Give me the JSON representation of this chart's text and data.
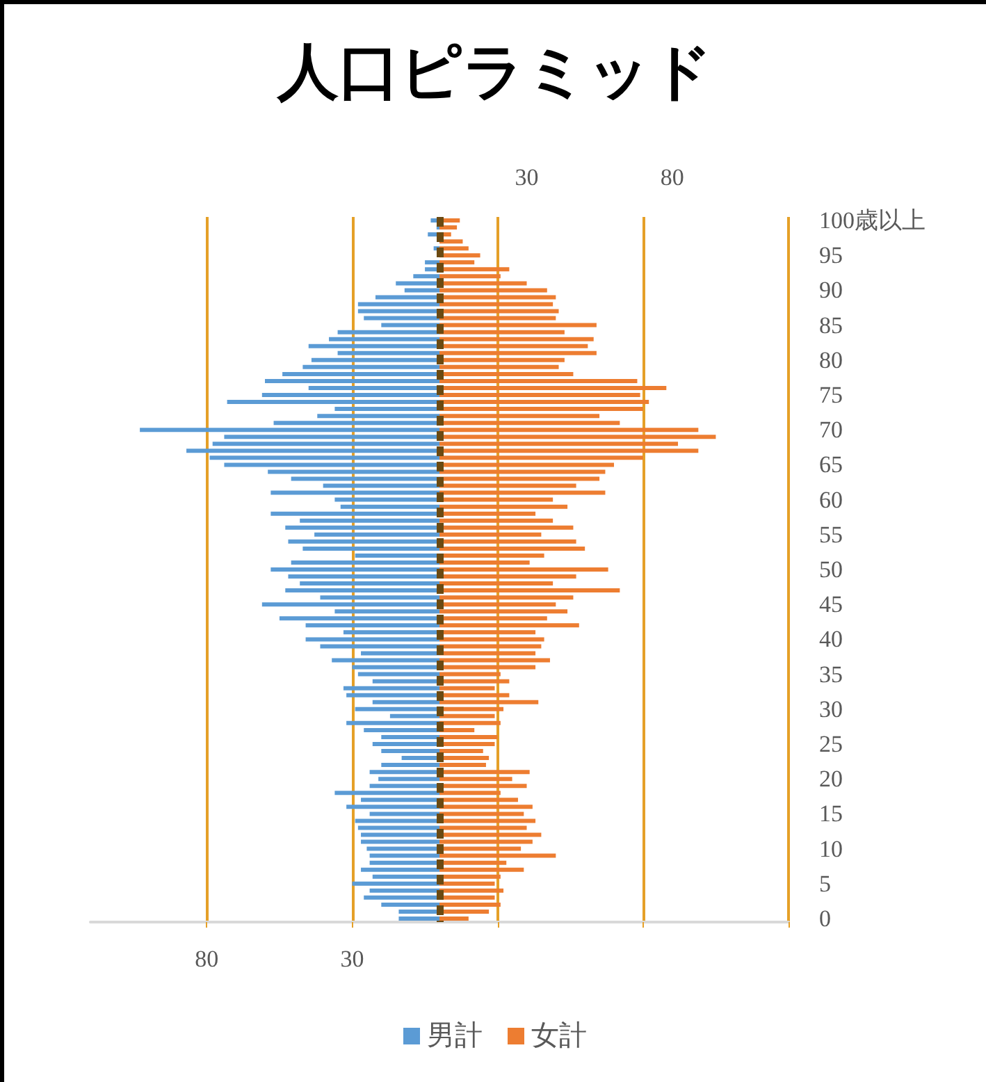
{
  "chart_data": {
    "type": "bar",
    "title": "人口ピラミッド",
    "orientation": "horizontal",
    "categories": [
      "100歳以上",
      null,
      null,
      null,
      null,
      "95",
      null,
      null,
      null,
      null,
      "90",
      null,
      null,
      null,
      null,
      "85",
      null,
      null,
      null,
      null,
      "80",
      null,
      null,
      null,
      null,
      "75",
      null,
      null,
      null,
      null,
      "70",
      null,
      null,
      null,
      null,
      "65",
      null,
      null,
      null,
      null,
      "60",
      null,
      null,
      null,
      null,
      "55",
      null,
      null,
      null,
      null,
      "50",
      null,
      null,
      null,
      null,
      "45",
      null,
      null,
      null,
      null,
      "40",
      null,
      null,
      null,
      null,
      "35",
      null,
      null,
      null,
      null,
      "30",
      null,
      null,
      null,
      null,
      "25",
      null,
      null,
      null,
      null,
      "20",
      null,
      null,
      null,
      null,
      "15",
      null,
      null,
      null,
      null,
      "10",
      null,
      null,
      null,
      null,
      "5",
      null,
      null,
      null,
      null,
      "0"
    ],
    "series": [
      {
        "name": "男計",
        "color": "#5b9bd5",
        "values": [
          -3,
          -1,
          -4,
          null,
          -2,
          null,
          -5,
          -5,
          -9,
          -15,
          -12,
          -22,
          -28,
          -28,
          -26,
          -20,
          -35,
          -38,
          -45,
          -35,
          -44,
          -47,
          -54,
          -60,
          -45,
          -61,
          -73,
          -36,
          -42,
          -57,
          -103,
          -74,
          -78,
          -87,
          -79,
          -74,
          -59,
          -51,
          -40,
          -58,
          -36,
          -34,
          -58,
          -48,
          -53,
          -43,
          -52,
          -47,
          -29,
          -51,
          -58,
          -52,
          -48,
          -53,
          -41,
          -61,
          -36,
          -55,
          -46,
          -33,
          -46,
          -41,
          -27,
          -37,
          -30,
          -28,
          -23,
          -33,
          -32,
          -23,
          -29,
          -17,
          -32,
          -26,
          -20,
          -23,
          -20,
          -13,
          -20,
          -24,
          -21,
          -24,
          -36,
          -27,
          -32,
          -24,
          -29,
          -28,
          -27,
          -27,
          -25,
          -24,
          -24,
          -27,
          -23,
          -30,
          -24,
          -26,
          -20,
          -14,
          -14
        ]
      },
      {
        "name": "女計",
        "color": "#ed7d31",
        "values": [
          7,
          6,
          4,
          8,
          10,
          14,
          12,
          24,
          21,
          30,
          37,
          40,
          39,
          41,
          40,
          54,
          43,
          53,
          51,
          54,
          43,
          41,
          46,
          68,
          78,
          69,
          72,
          70,
          55,
          62,
          89,
          95,
          82,
          89,
          70,
          60,
          57,
          55,
          47,
          57,
          39,
          44,
          33,
          39,
          46,
          35,
          47,
          50,
          36,
          31,
          58,
          47,
          39,
          62,
          46,
          40,
          44,
          37,
          48,
          33,
          36,
          35,
          33,
          38,
          33,
          21,
          24,
          19,
          24,
          34,
          22,
          19,
          21,
          12,
          20,
          19,
          15,
          17,
          16,
          31,
          25,
          30,
          21,
          27,
          32,
          29,
          33,
          30,
          35,
          32,
          28,
          40,
          23,
          29,
          21,
          19,
          22,
          19,
          21,
          17,
          10
        ]
      }
    ],
    "xlim": [
      -120,
      120
    ],
    "xticks": [
      {
        "value": -80,
        "label": "80"
      },
      {
        "value": -30,
        "label": "30"
      },
      {
        "value": 20,
        "label": null
      },
      {
        "value": 70,
        "label": null
      },
      {
        "value": 120,
        "label": null
      }
    ],
    "x2lim": [
      -120,
      120
    ],
    "x2ticks": [
      30,
      80
    ],
    "ref_lines": [
      {
        "axis": "x",
        "value": 0,
        "color": "#6b4a12",
        "line_style": "dashed"
      }
    ],
    "stacked": true,
    "grid": "x",
    "legend": "bottom"
  }
}
